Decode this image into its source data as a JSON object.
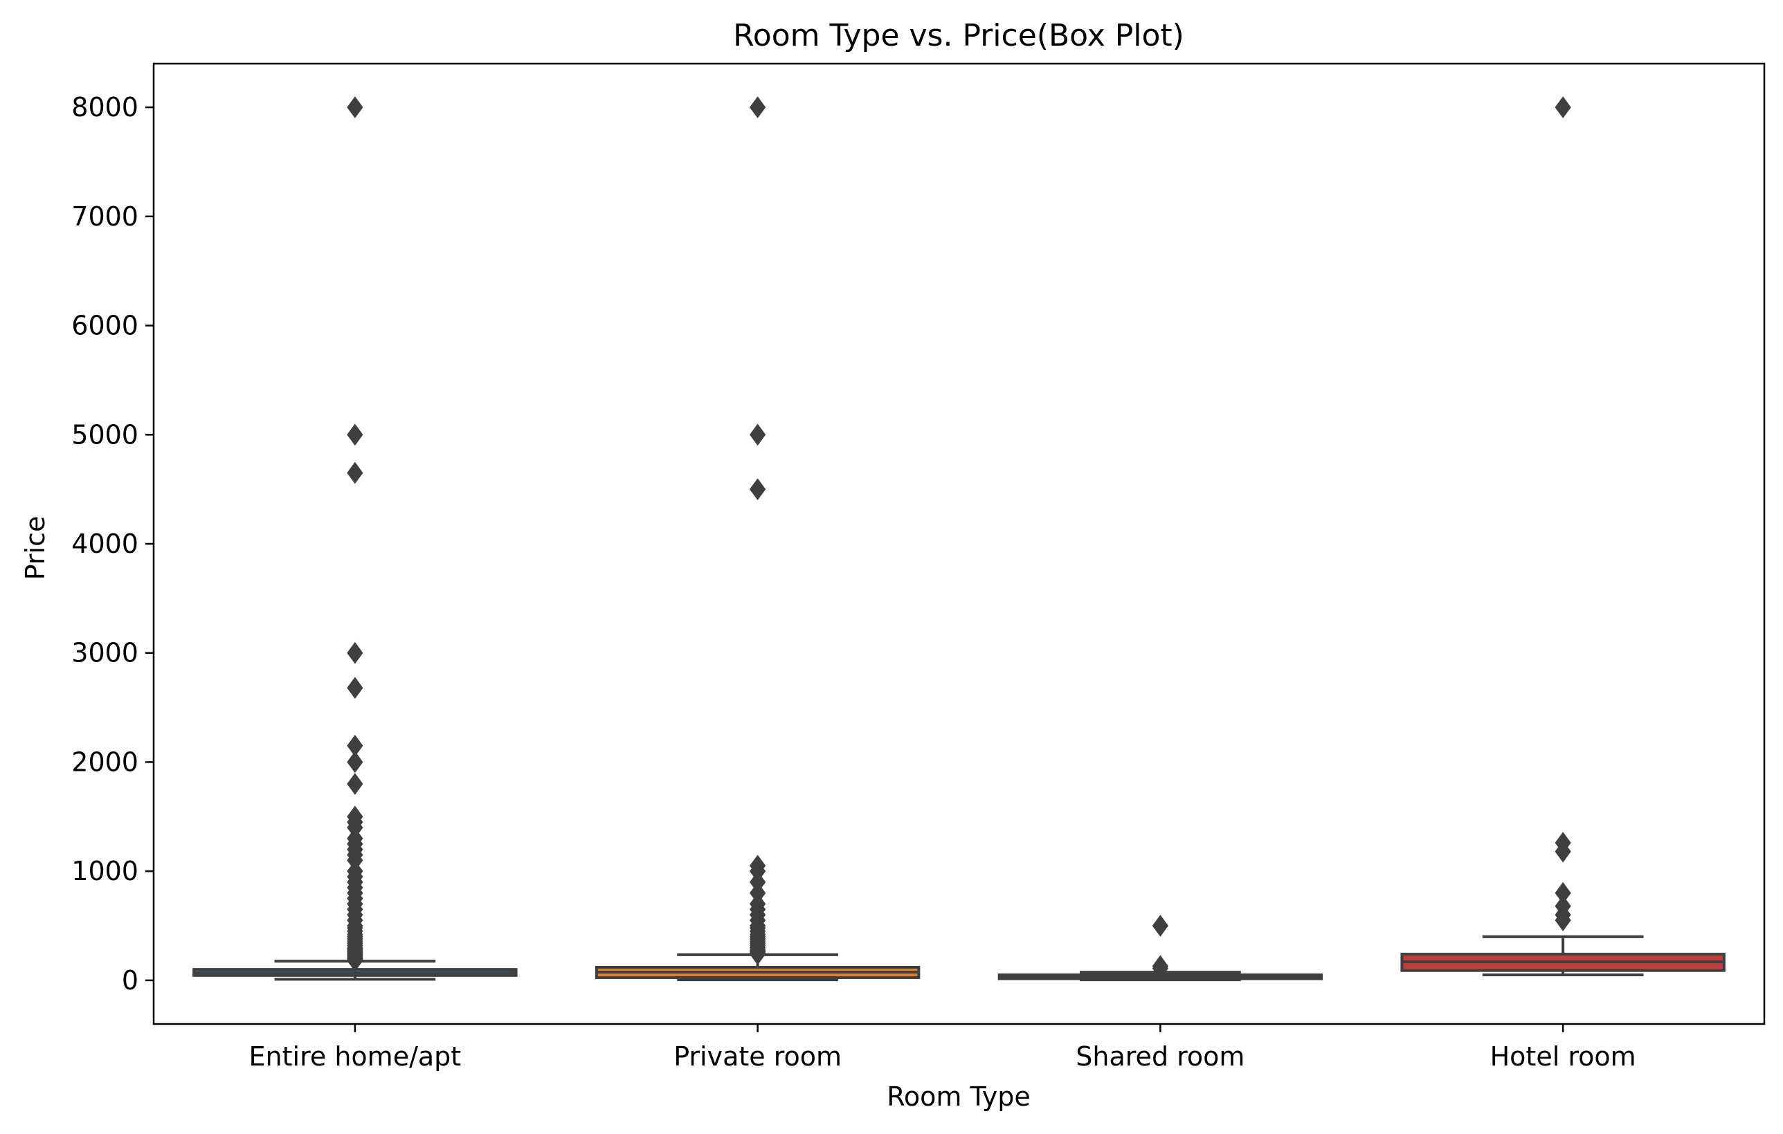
{
  "chart_data": {
    "type": "box",
    "title": "Room Type vs. Price(Box Plot)",
    "xlabel": "Room Type",
    "ylabel": "Price",
    "ylim": [
      -400,
      8400
    ],
    "yticks": [
      0,
      1000,
      2000,
      3000,
      4000,
      5000,
      6000,
      7000,
      8000
    ],
    "grid": false,
    "categories": [
      "Entire home/apt",
      "Private room",
      "Shared room",
      "Hotel room"
    ],
    "boxes": [
      {
        "category": "Entire home/apt",
        "color": "#3a75a8",
        "whisker_low": 10,
        "q1": 45,
        "median": 70,
        "q3": 100,
        "whisker_high": 175,
        "outliers": [
          180,
          190,
          200,
          210,
          220,
          230,
          240,
          250,
          260,
          270,
          280,
          290,
          300,
          320,
          340,
          360,
          380,
          400,
          420,
          450,
          480,
          500,
          550,
          600,
          650,
          700,
          750,
          800,
          850,
          900,
          950,
          1000,
          1100,
          1150,
          1200,
          1250,
          1300,
          1400,
          1450,
          1500,
          1800,
          2000,
          2150,
          2680,
          3000,
          4650,
          5000,
          8000
        ]
      },
      {
        "category": "Private room",
        "color": "#e1812c",
        "whisker_low": 5,
        "q1": 25,
        "median": 75,
        "q3": 120,
        "whisker_high": 235,
        "outliers": [
          240,
          250,
          260,
          270,
          280,
          300,
          320,
          340,
          360,
          380,
          400,
          420,
          450,
          480,
          500,
          550,
          600,
          650,
          700,
          800,
          900,
          1000,
          1050,
          4500,
          5000,
          8000
        ]
      },
      {
        "category": "Shared room",
        "color": "#3a923a",
        "whisker_low": 5,
        "q1": 15,
        "median": 30,
        "q3": 50,
        "whisker_high": 75,
        "outliers": [
          110,
          130,
          500
        ]
      },
      {
        "category": "Hotel room",
        "color": "#c03d3e",
        "whisker_low": 50,
        "q1": 90,
        "median": 170,
        "q3": 240,
        "whisker_high": 400,
        "outliers": [
          550,
          600,
          680,
          800,
          1180,
          1260,
          8000
        ]
      }
    ]
  }
}
